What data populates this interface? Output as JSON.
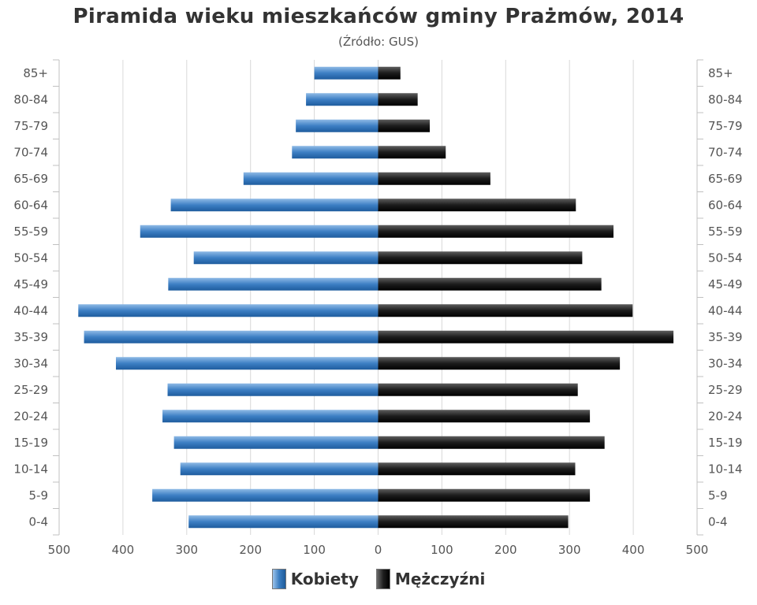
{
  "chart_data": {
    "type": "bar",
    "orientation": "horizontal",
    "title": "Piramida wieku mieszkańców gminy Prażmów, 2014",
    "subtitle": "(Źródło: GUS)",
    "categories": [
      "85+",
      "80-84",
      "75-79",
      "70-74",
      "65-69",
      "60-64",
      "55-59",
      "50-54",
      "45-49",
      "40-44",
      "35-39",
      "30-34",
      "25-29",
      "20-24",
      "15-19",
      "10-14",
      "5-9",
      "0-4"
    ],
    "series": [
      {
        "name": "Kobiety",
        "color": "#3d7fc4",
        "values": [
          100,
          113,
          129,
          135,
          211,
          325,
          373,
          289,
          329,
          470,
          461,
          411,
          330,
          338,
          320,
          310,
          354,
          297
        ]
      },
      {
        "name": "Mężczyźni",
        "color": "#1a1a1a",
        "values": [
          35,
          62,
          81,
          106,
          176,
          310,
          369,
          320,
          350,
          399,
          463,
          379,
          313,
          332,
          355,
          309,
          332,
          298
        ]
      }
    ],
    "xlim": [
      -500,
      500
    ],
    "xticks": [
      "500",
      "400",
      "300",
      "200",
      "100",
      "0",
      "100",
      "200",
      "300",
      "400",
      "500"
    ],
    "grid": true,
    "legend_position": "bottom"
  }
}
